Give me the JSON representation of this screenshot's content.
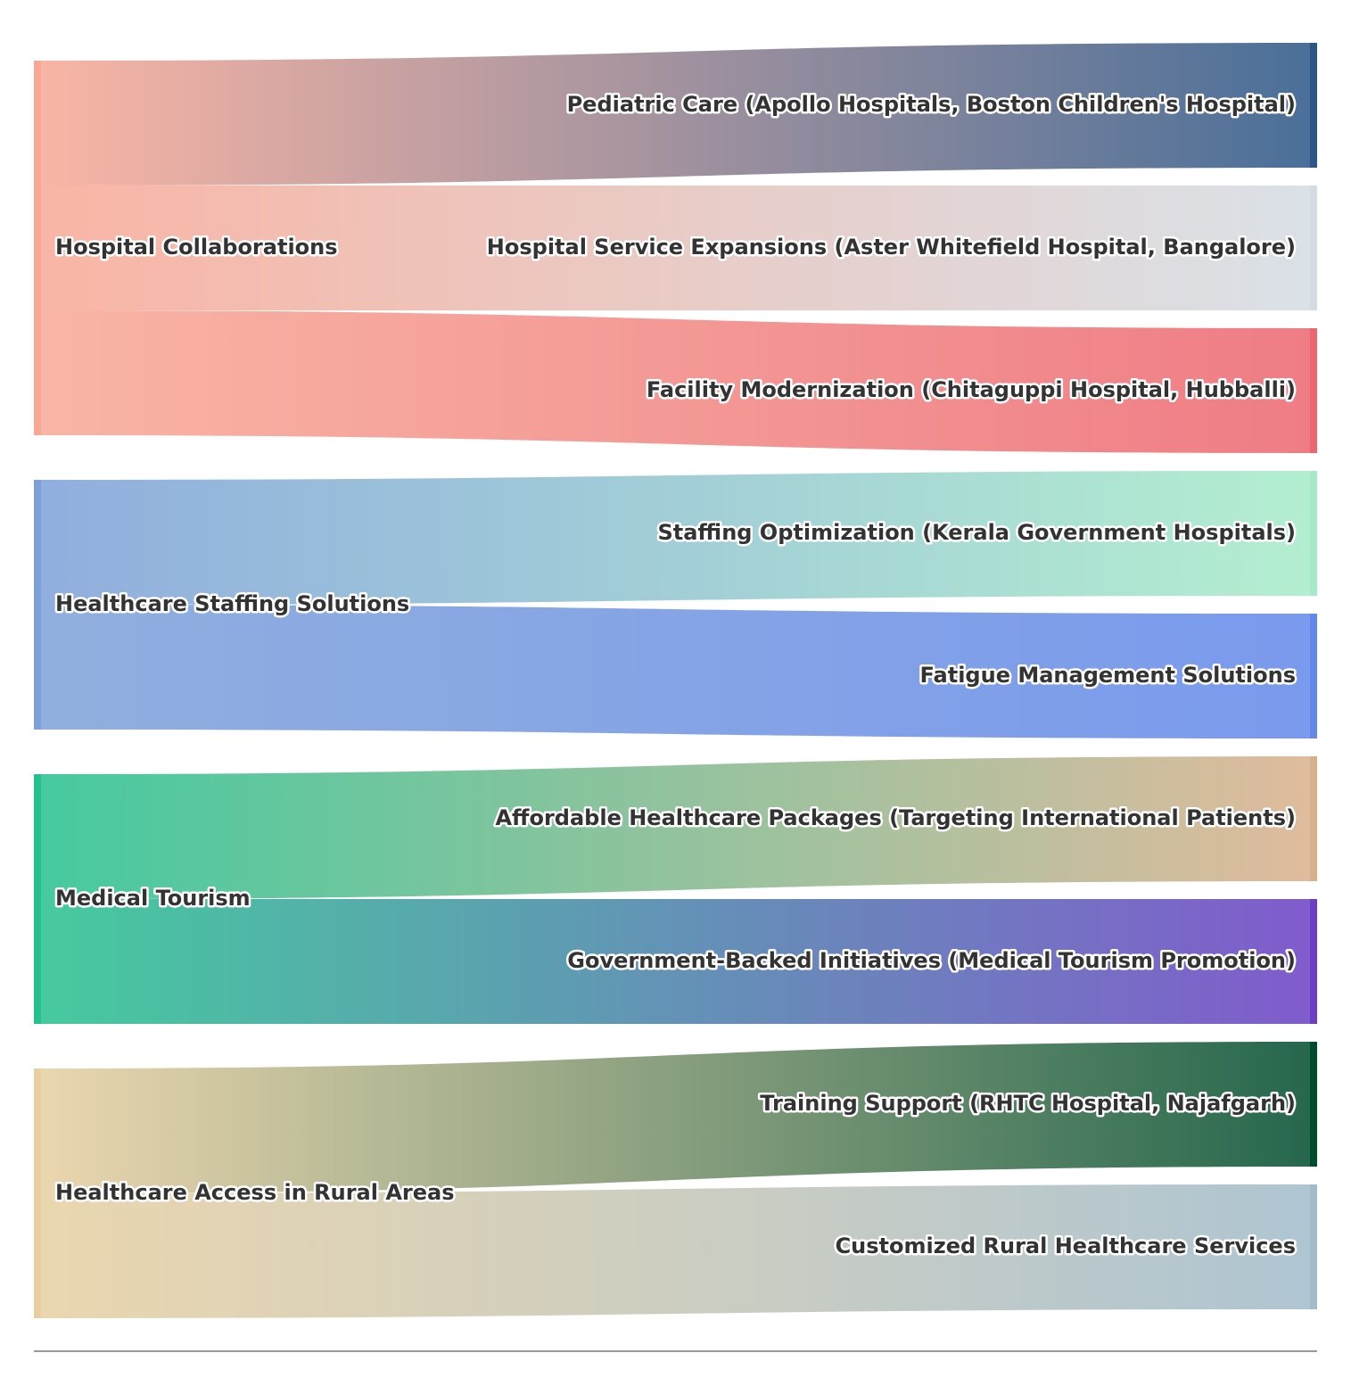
{
  "diagram": {
    "type": "sankey",
    "sources": [
      {
        "id": "hc",
        "label": "Hospital Collaborations",
        "color": "#f8a895"
      },
      {
        "id": "hs",
        "label": "Healthcare Staffing Solutions",
        "color": "#7da0d8"
      },
      {
        "id": "mt",
        "label": "Medical Tourism",
        "color": "#26c08e"
      },
      {
        "id": "ra",
        "label": "Healthcare Access in Rural Areas",
        "color": "#e7cfa1"
      }
    ],
    "targets": [
      {
        "id": "pc",
        "label": "Pediatric Care (Apollo Hospitals, Boston Children's Hospital)",
        "color": "#2b5687"
      },
      {
        "id": "se",
        "label": "Hospital Service Expansions (Aster Whitefield Hospital, Bangalore)",
        "color": "#d3dce3"
      },
      {
        "id": "fm",
        "label": "Facility Modernization (Chitaguppi Hospital, Hubballi)",
        "color": "#ec6670"
      },
      {
        "id": "so",
        "label": "Staffing Optimization (Kerala Government Hospitals)",
        "color": "#a6ebc8"
      },
      {
        "id": "fa",
        "label": "Fatigue Management Solutions",
        "color": "#6388ea"
      },
      {
        "id": "ah",
        "label": "Affordable Healthcare Packages (Targeting International Patients)",
        "color": "#d9b08c"
      },
      {
        "id": "gb",
        "label": "Government-Backed Initiatives (Medical Tourism Promotion)",
        "color": "#6a3fc4"
      },
      {
        "id": "ts",
        "label": "Training Support (RHTC Hospital, Najafgarh)",
        "color": "#004d2e"
      },
      {
        "id": "cr",
        "label": "Customized Rural Healthcare Services",
        "color": "#a1bbca"
      }
    ],
    "links": [
      {
        "source": "hc",
        "target": "pc",
        "value": 1
      },
      {
        "source": "hc",
        "target": "se",
        "value": 1
      },
      {
        "source": "hc",
        "target": "fm",
        "value": 1
      },
      {
        "source": "hs",
        "target": "so",
        "value": 1
      },
      {
        "source": "hs",
        "target": "fa",
        "value": 1
      },
      {
        "source": "mt",
        "target": "ah",
        "value": 1
      },
      {
        "source": "mt",
        "target": "gb",
        "value": 1
      },
      {
        "source": "ra",
        "target": "ts",
        "value": 1
      },
      {
        "source": "ra",
        "target": "cr",
        "value": 1
      }
    ]
  }
}
